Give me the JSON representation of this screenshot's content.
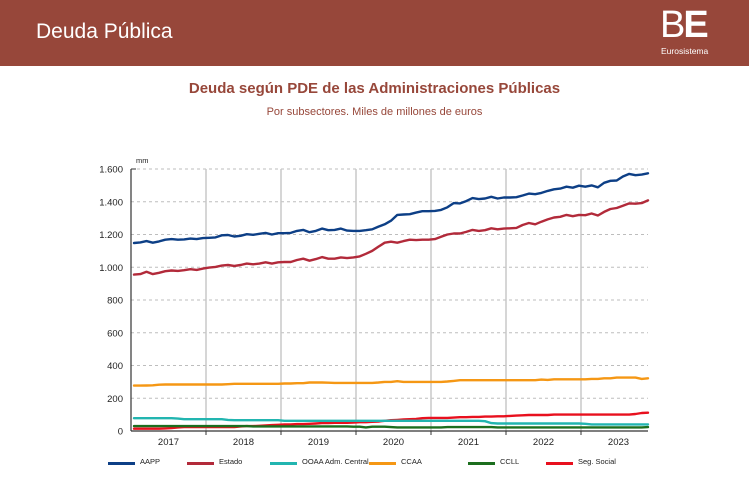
{
  "header": {
    "title": "Deuda Pública",
    "logo_text_b": "B",
    "logo_text_e": "E",
    "logo_subtitle": "Eurosistema",
    "bg_color": "#97473a"
  },
  "chart_data": {
    "type": "line",
    "title": "Deuda según PDE de las Administraciones Públicas",
    "subtitle": "Por subsectores. Miles de millones de euros",
    "unit_label": "mm",
    "xlabel": "",
    "ylabel": "",
    "ylim": [
      0,
      1600
    ],
    "y_ticks": [
      "0",
      "200",
      "400",
      "600",
      "800",
      "1.000",
      "1.200",
      "1.400",
      "1.600"
    ],
    "y_tick_values": [
      0,
      200,
      400,
      600,
      800,
      1000,
      1200,
      1400,
      1600
    ],
    "x_tick_labels": [
      "2017",
      "2018",
      "2019",
      "2020",
      "2021",
      "2022",
      "2023"
    ],
    "x_range_years": [
      2017.0,
      2023.9
    ],
    "grid": "horizontal dashed, vertical solid at year boundaries",
    "legend_position": "bottom",
    "frequency": "monthly",
    "start": "2017-01",
    "series": [
      {
        "name": "AAPP",
        "color": "#0d3f86",
        "values": [
          1148,
          1152,
          1160,
          1150,
          1158,
          1168,
          1172,
          1168,
          1170,
          1175,
          1172,
          1178,
          1180,
          1182,
          1195,
          1197,
          1188,
          1192,
          1202,
          1198,
          1204,
          1210,
          1200,
          1208,
          1208,
          1210,
          1222,
          1228,
          1214,
          1222,
          1236,
          1226,
          1228,
          1236,
          1224,
          1222,
          1222,
          1226,
          1232,
          1248,
          1262,
          1284,
          1320,
          1322,
          1324,
          1334,
          1342,
          1342,
          1344,
          1350,
          1366,
          1392,
          1390,
          1404,
          1422,
          1416,
          1420,
          1430,
          1420,
          1426,
          1426,
          1428,
          1438,
          1450,
          1446,
          1454,
          1466,
          1476,
          1480,
          1492,
          1486,
          1498,
          1492,
          1500,
          1488,
          1516,
          1528,
          1530,
          1554,
          1570,
          1562,
          1566,
          1574
        ]
      },
      {
        "name": "Estado",
        "color": "#b22a3a",
        "values": [
          955,
          958,
          972,
          958,
          966,
          976,
          980,
          978,
          982,
          988,
          984,
          992,
          998,
          1002,
          1010,
          1014,
          1008,
          1014,
          1022,
          1018,
          1022,
          1030,
          1022,
          1030,
          1032,
          1032,
          1044,
          1052,
          1040,
          1050,
          1062,
          1052,
          1052,
          1060,
          1056,
          1060,
          1066,
          1082,
          1100,
          1126,
          1150,
          1156,
          1150,
          1160,
          1168,
          1166,
          1168,
          1168,
          1172,
          1186,
          1200,
          1206,
          1206,
          1216,
          1228,
          1222,
          1226,
          1238,
          1232,
          1236,
          1238,
          1240,
          1258,
          1270,
          1262,
          1278,
          1292,
          1304,
          1308,
          1320,
          1312,
          1320,
          1318,
          1328,
          1316,
          1338,
          1356,
          1362,
          1376,
          1390,
          1388,
          1392,
          1408
        ]
      },
      {
        "name": "OOAA Adm. Central",
        "color": "#22b5b0",
        "values": [
          78,
          78,
          78,
          78,
          78,
          78,
          78,
          76,
          72,
          72,
          72,
          72,
          72,
          72,
          72,
          68,
          66,
          66,
          66,
          66,
          66,
          66,
          66,
          66,
          62,
          62,
          62,
          62,
          62,
          62,
          62,
          62,
          62,
          62,
          62,
          62,
          62,
          62,
          62,
          62,
          62,
          62,
          62,
          62,
          62,
          62,
          62,
          62,
          62,
          62,
          62,
          62,
          62,
          62,
          62,
          62,
          60,
          48,
          46,
          46,
          46,
          46,
          46,
          46,
          46,
          46,
          46,
          46,
          46,
          46,
          46,
          46,
          44,
          40,
          40,
          40,
          40,
          40,
          40,
          40,
          40,
          40,
          40
        ]
      },
      {
        "name": "CCAA",
        "color": "#f59714",
        "values": [
          277,
          277,
          278,
          279,
          283,
          284,
          284,
          284,
          284,
          284,
          284,
          284,
          284,
          284,
          284,
          286,
          288,
          288,
          288,
          288,
          288,
          288,
          288,
          288,
          290,
          290,
          292,
          292,
          296,
          296,
          296,
          295,
          294,
          294,
          294,
          294,
          294,
          294,
          294,
          296,
          300,
          300,
          304,
          300,
          300,
          300,
          300,
          300,
          300,
          300,
          302,
          306,
          310,
          310,
          310,
          310,
          310,
          310,
          310,
          310,
          310,
          310,
          310,
          310,
          310,
          314,
          312,
          316,
          316,
          316,
          316,
          316,
          316,
          318,
          318,
          322,
          322,
          326,
          326,
          326,
          326,
          318,
          322
        ]
      },
      {
        "name": "CCLL",
        "color": "#1c6e1e",
        "values": [
          30,
          30,
          30,
          30,
          30,
          30,
          30,
          30,
          30,
          30,
          30,
          30,
          30,
          30,
          30,
          30,
          30,
          30,
          30,
          28,
          28,
          28,
          28,
          28,
          28,
          28,
          28,
          28,
          28,
          28,
          28,
          28,
          28,
          28,
          28,
          26,
          26,
          22,
          26,
          26,
          26,
          24,
          22,
          22,
          22,
          22,
          22,
          22,
          22,
          22,
          24,
          24,
          24,
          24,
          24,
          24,
          24,
          24,
          22,
          22,
          22,
          22,
          22,
          22,
          22,
          22,
          22,
          22,
          22,
          22,
          22,
          22,
          22,
          22,
          22,
          22,
          22,
          22,
          22,
          22,
          22,
          22,
          24
        ]
      },
      {
        "name": "Seg. Social",
        "color": "#e8101e",
        "values": [
          14,
          14,
          14,
          14,
          14,
          16,
          18,
          22,
          24,
          24,
          24,
          24,
          24,
          24,
          24,
          24,
          24,
          28,
          30,
          30,
          32,
          34,
          36,
          38,
          40,
          40,
          42,
          42,
          44,
          46,
          48,
          48,
          50,
          50,
          50,
          52,
          54,
          54,
          56,
          58,
          62,
          66,
          68,
          70,
          72,
          74,
          78,
          80,
          80,
          80,
          80,
          82,
          84,
          84,
          86,
          86,
          88,
          88,
          90,
          90,
          92,
          94,
          96,
          98,
          98,
          98,
          98,
          100,
          100,
          100,
          100,
          100,
          100,
          100,
          100,
          100,
          100,
          100,
          100,
          100,
          104,
          110,
          112
        ]
      }
    ]
  },
  "legend": {
    "items": [
      {
        "label": "AAPP",
        "color": "#0d3f86"
      },
      {
        "label": "Estado",
        "color": "#b22a3a"
      },
      {
        "label": "OOAA Adm. Central",
        "color": "#22b5b0"
      },
      {
        "label": "CCAA",
        "color": "#f59714"
      },
      {
        "label": "CCLL",
        "color": "#1c6e1e"
      },
      {
        "label": "Seg. Social",
        "color": "#e8101e"
      }
    ]
  }
}
